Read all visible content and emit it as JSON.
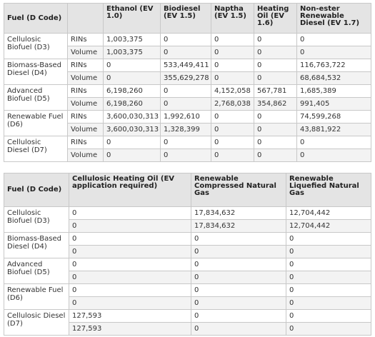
{
  "table1": {
    "headers": {
      "fuel": "Fuel (D Code)",
      "ethanol": "Ethanol (EV 1.0)",
      "biodiesel": "Biodiesel (EV 1.5)",
      "naptha": "Naptha (EV 1.5)",
      "heating_oil": "Heating Oil (EV 1.6)",
      "non_ester": "Non-ester Renewable Diesel (EV 1.7)"
    },
    "rows": [
      {
        "fuel": "Cellulosic Biofuel (D3)",
        "rins": {
          "label": "RINs",
          "values": [
            "1,003,375",
            "0",
            "0",
            "0",
            "0"
          ]
        },
        "volume": {
          "label": "Volume",
          "values": [
            "1,003,375",
            "0",
            "0",
            "0",
            "0"
          ]
        }
      },
      {
        "fuel": "Biomass-Based Diesel (D4)",
        "rins": {
          "label": "RINs",
          "values": [
            "0",
            "533,449,411",
            "0",
            "0",
            "116,763,722"
          ]
        },
        "volume": {
          "label": "Volume",
          "values": [
            "0",
            "355,629,278",
            "0",
            "0",
            "68,684,532"
          ]
        }
      },
      {
        "fuel": "Advanced Biofuel (D5)",
        "rins": {
          "label": "RINs",
          "values": [
            "6,198,260",
            "0",
            "4,152,058",
            "567,781",
            "1,685,389"
          ]
        },
        "volume": {
          "label": "Volume",
          "values": [
            "6,198,260",
            "0",
            "2,768,038",
            "354,862",
            "991,405"
          ]
        }
      },
      {
        "fuel": "Renewable Fuel (D6)",
        "rins": {
          "label": "RINs",
          "values": [
            "3,600,030,313",
            "1,992,610",
            "0",
            "0",
            "74,599,268"
          ]
        },
        "volume": {
          "label": "Volume",
          "values": [
            "3,600,030,313",
            "1,328,399",
            "0",
            "0",
            "43,881,922"
          ]
        }
      },
      {
        "fuel": "Cellulosic Diesel (D7)",
        "rins": {
          "label": "RINs",
          "values": [
            "0",
            "0",
            "0",
            "0",
            "0"
          ]
        },
        "volume": {
          "label": "Volume",
          "values": [
            "0",
            "0",
            "0",
            "0",
            "0"
          ]
        }
      }
    ]
  },
  "table2": {
    "headers": {
      "fuel": "Fuel (D Code)",
      "heating_oil": "Cellulosic Heating Oil (EV application required)",
      "cng": "Renewable Compressed Natural Gas",
      "lng": "Renewable Liquefied Natural Gas"
    },
    "rows": [
      {
        "fuel": "Cellulosic Biofuel (D3)",
        "r1": [
          "0",
          "17,834,632",
          "12,704,442"
        ],
        "r2": [
          "0",
          "17,834,632",
          "12,704,442"
        ]
      },
      {
        "fuel": "Biomass-Based Diesel (D4)",
        "r1": [
          "0",
          "0",
          "0"
        ],
        "r2": [
          "0",
          "0",
          "0"
        ]
      },
      {
        "fuel": "Advanced Biofuel (D5)",
        "r1": [
          "0",
          "0",
          "0"
        ],
        "r2": [
          "0",
          "0",
          "0"
        ]
      },
      {
        "fuel": "Renewable Fuel (D6)",
        "r1": [
          "0",
          "0",
          "0"
        ],
        "r2": [
          "0",
          "0",
          "0"
        ]
      },
      {
        "fuel": "Cellulosic Diesel (D7)",
        "r1": [
          "127,593",
          "0",
          "0"
        ],
        "r2": [
          "127,593",
          "0",
          "0"
        ]
      }
    ]
  }
}
